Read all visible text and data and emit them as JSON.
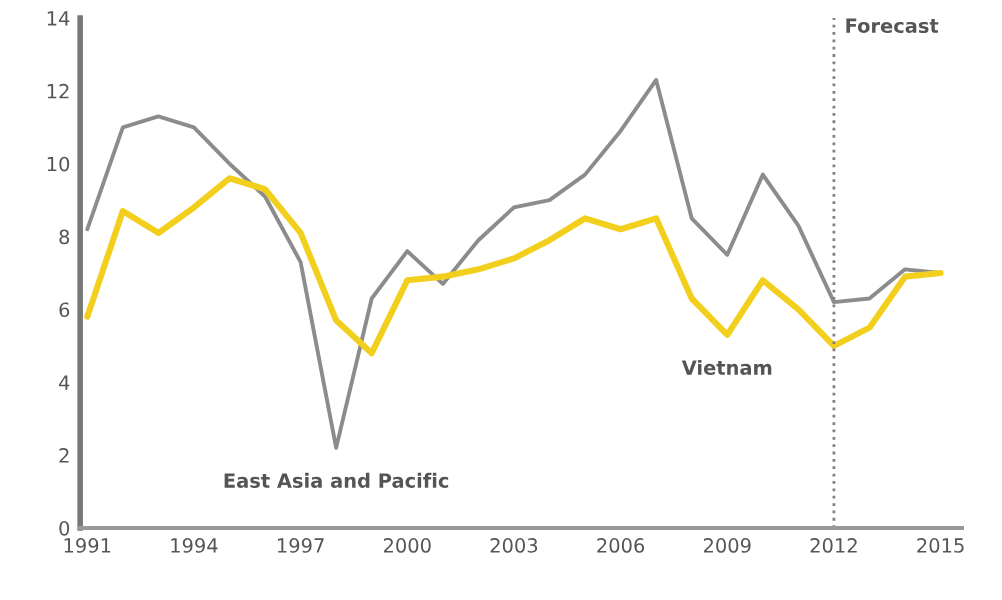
{
  "chart_data": {
    "type": "line",
    "x": [
      1991,
      1992,
      1993,
      1994,
      1995,
      1996,
      1997,
      1998,
      1999,
      2000,
      2001,
      2002,
      2003,
      2004,
      2005,
      2006,
      2007,
      2008,
      2009,
      2010,
      2011,
      2012,
      2013,
      2014,
      2015
    ],
    "series": [
      {
        "name": "East Asia and Pacific",
        "color": "#8c8c8c",
        "values": [
          8.2,
          11.0,
          11.3,
          11.0,
          10.0,
          9.1,
          7.3,
          2.2,
          6.3,
          7.6,
          6.7,
          7.9,
          8.8,
          9.0,
          9.7,
          10.9,
          12.3,
          8.5,
          7.5,
          9.7,
          8.3,
          6.2,
          6.3,
          7.1,
          7.0
        ]
      },
      {
        "name": "Vietnam",
        "color": "#f2cf1d",
        "values": [
          5.8,
          8.7,
          8.1,
          8.8,
          9.6,
          9.3,
          8.1,
          5.7,
          4.8,
          6.8,
          6.9,
          7.1,
          7.4,
          7.9,
          8.5,
          8.2,
          8.5,
          6.3,
          5.3,
          6.8,
          6.0,
          5.0,
          5.5,
          6.9,
          7.0
        ]
      }
    ],
    "ref_lines": [
      {
        "axis": "x",
        "value": 2012,
        "label": "Forecast",
        "color": "#808080",
        "line_style": "dotted"
      }
    ],
    "xlim": [
      1990.8,
      2015.6
    ],
    "xticks": [
      1991,
      1994,
      1997,
      2000,
      2003,
      2006,
      2009,
      2012,
      2015
    ],
    "ylim": [
      0,
      14
    ],
    "yticks": [
      0,
      2,
      4,
      6,
      8,
      10,
      12,
      14
    ],
    "grid": false,
    "legend": false
  }
}
